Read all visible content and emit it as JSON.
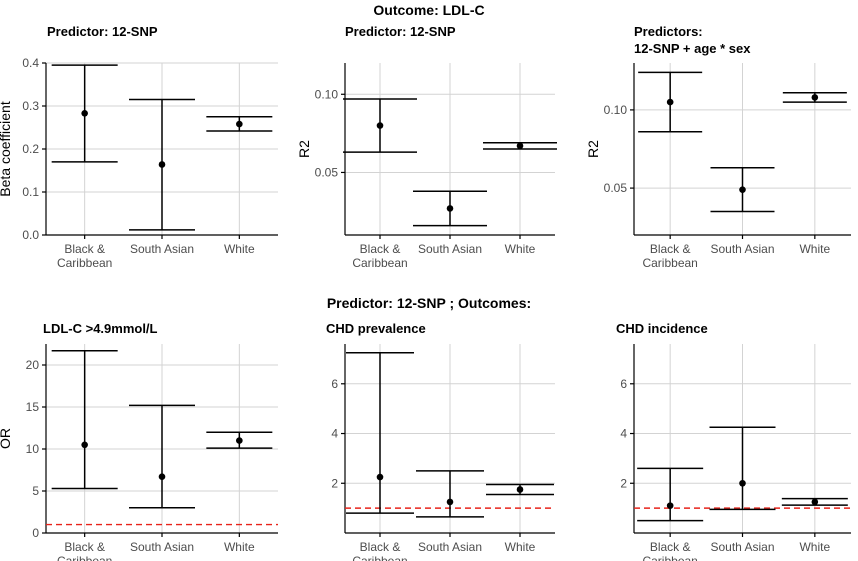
{
  "figure": {
    "top_title": "Outcome: LDL-C",
    "mid_title": "Predictor: 12-SNP ; Outcomes:"
  },
  "chart_data": [
    {
      "type": "scatter",
      "title": "Predictor: 12-SNP",
      "title_line2": "",
      "ylabel": "Beta coefficient",
      "ylim": [
        0,
        0.4
      ],
      "yticks": [
        0.0,
        0.1,
        0.2,
        0.3,
        0.4
      ],
      "ytick_labels": [
        "0.0",
        "0.1",
        "0.2",
        "0.3",
        "0.4"
      ],
      "categories": [
        [
          "Black &",
          "Caribbean"
        ],
        [
          "South Asian"
        ],
        [
          "White"
        ]
      ],
      "estimates": [
        0.283,
        0.164,
        0.258
      ],
      "lower": [
        0.17,
        0.012,
        0.242
      ],
      "upper": [
        0.395,
        0.315,
        0.275
      ],
      "reference_line": null
    },
    {
      "type": "scatter",
      "title": "Predictor: 12-SNP",
      "title_line2": "",
      "ylabel": "R2",
      "ylim": [
        0.01,
        0.12
      ],
      "yticks": [
        0.05,
        0.1
      ],
      "ytick_labels": [
        "0.05",
        "0.10"
      ],
      "categories": [
        [
          "Black &",
          "Caribbean"
        ],
        [
          "South Asian"
        ],
        [
          "White"
        ]
      ],
      "estimates": [
        0.08,
        0.027,
        0.067
      ],
      "lower": [
        0.063,
        0.016,
        0.065
      ],
      "upper": [
        0.097,
        0.038,
        0.069
      ],
      "reference_line": null
    },
    {
      "type": "scatter",
      "title": "Predictors:",
      "title_line2": "12-SNP + age * sex",
      "ylabel": "R2",
      "ylim": [
        0.02,
        0.13
      ],
      "yticks": [
        0.05,
        0.1
      ],
      "ytick_labels": [
        "0.05",
        "0.10"
      ],
      "categories": [
        [
          "Black &",
          "Caribbean"
        ],
        [
          "South Asian"
        ],
        [
          "White"
        ]
      ],
      "estimates": [
        0.105,
        0.049,
        0.108
      ],
      "lower": [
        0.086,
        0.035,
        0.105
      ],
      "upper": [
        0.124,
        0.063,
        0.111
      ],
      "reference_line": null
    },
    {
      "type": "scatter",
      "title": "LDL-C >4.9mmol/L",
      "title_line2": "",
      "ylabel": "OR",
      "ylim": [
        0,
        22.5
      ],
      "yticks": [
        0,
        5,
        10,
        15,
        20
      ],
      "ytick_labels": [
        "0",
        "5",
        "10",
        "15",
        "20"
      ],
      "categories": [
        [
          "Black &",
          "Caribbean"
        ],
        [
          "South Asian"
        ],
        [
          "White"
        ]
      ],
      "estimates": [
        10.5,
        6.7,
        11.0
      ],
      "lower": [
        5.3,
        3.0,
        10.1
      ],
      "upper": [
        21.7,
        15.2,
        12.0
      ],
      "reference_line": 1
    },
    {
      "type": "scatter",
      "title": "CHD prevalence",
      "title_line2": "",
      "ylabel": "",
      "ylim": [
        0,
        7.6
      ],
      "yticks": [
        2,
        4,
        6
      ],
      "ytick_labels": [
        "2",
        "4",
        "6"
      ],
      "categories": [
        [
          "Black &",
          "Caribbean"
        ],
        [
          "South Asian"
        ],
        [
          "White"
        ]
      ],
      "estimates": [
        2.25,
        1.25,
        1.75
      ],
      "lower": [
        0.8,
        0.65,
        1.55
      ],
      "upper": [
        7.25,
        2.5,
        1.95
      ],
      "reference_line": 1
    },
    {
      "type": "scatter",
      "title": "CHD incidence",
      "title_line2": "",
      "ylabel": "",
      "ylim": [
        0,
        7.6
      ],
      "yticks": [
        2,
        4,
        6
      ],
      "ytick_labels": [
        "2",
        "4",
        "6"
      ],
      "categories": [
        [
          "Black &",
          "Caribbean"
        ],
        [
          "South Asian"
        ],
        [
          "White"
        ]
      ],
      "estimates": [
        1.1,
        2.0,
        1.25
      ],
      "lower": [
        0.5,
        0.95,
        1.12
      ],
      "upper": [
        2.6,
        4.25,
        1.38
      ],
      "reference_line": 1
    }
  ]
}
